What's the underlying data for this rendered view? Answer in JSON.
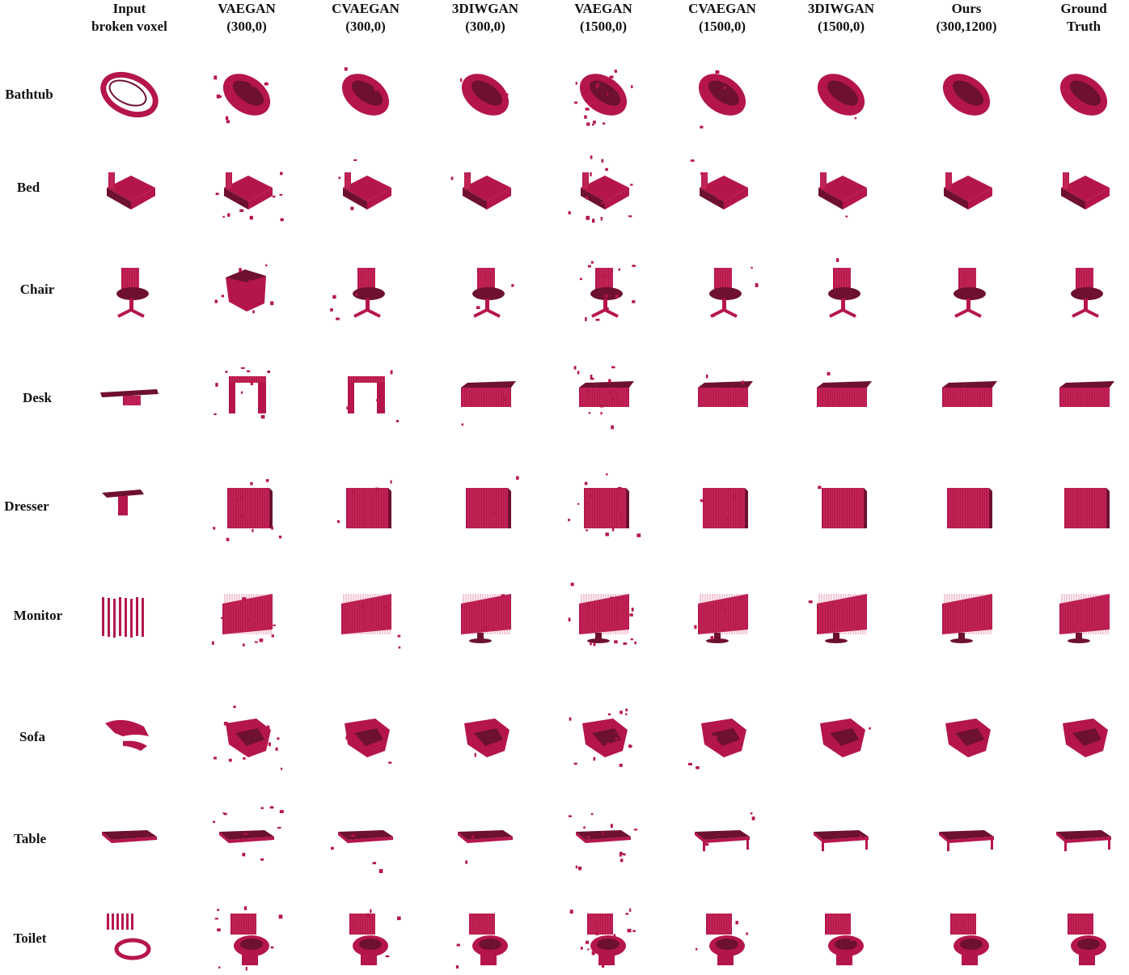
{
  "columns": [
    {
      "line1": "Input",
      "line2": "broken voxel"
    },
    {
      "line1": "VAEGAN",
      "line2": "(300,0)"
    },
    {
      "line1": "CVAEGAN",
      "line2": "(300,0)"
    },
    {
      "line1": "3DIWGAN",
      "line2": "(300,0)"
    },
    {
      "line1": "VAEGAN",
      "line2": "(1500,0)"
    },
    {
      "line1": "CVAEGAN",
      "line2": "(1500,0)"
    },
    {
      "line1": "3DIWGAN",
      "line2": "(1500,0)"
    },
    {
      "line1": "Ours",
      "line2": "(300,1200)"
    },
    {
      "line1": "Ground",
      "line2": "Truth"
    }
  ],
  "rows": [
    {
      "label": "Bathtub",
      "shape": "tub"
    },
    {
      "label": "Bed",
      "shape": "bed"
    },
    {
      "label": "Chair",
      "shape": "chair"
    },
    {
      "label": "Desk",
      "shape": "desk"
    },
    {
      "label": "Dresser",
      "shape": "dresser"
    },
    {
      "label": "Monitor",
      "shape": "monitor"
    },
    {
      "label": "Sofa",
      "shape": "sofa"
    },
    {
      "label": "Table",
      "shape": "table"
    },
    {
      "label": "Toilet",
      "shape": "toilet"
    }
  ],
  "colors": {
    "voxel": "#b5164a",
    "voxel_dark": "#6e1030",
    "voxel_grid": "#d9476f"
  }
}
